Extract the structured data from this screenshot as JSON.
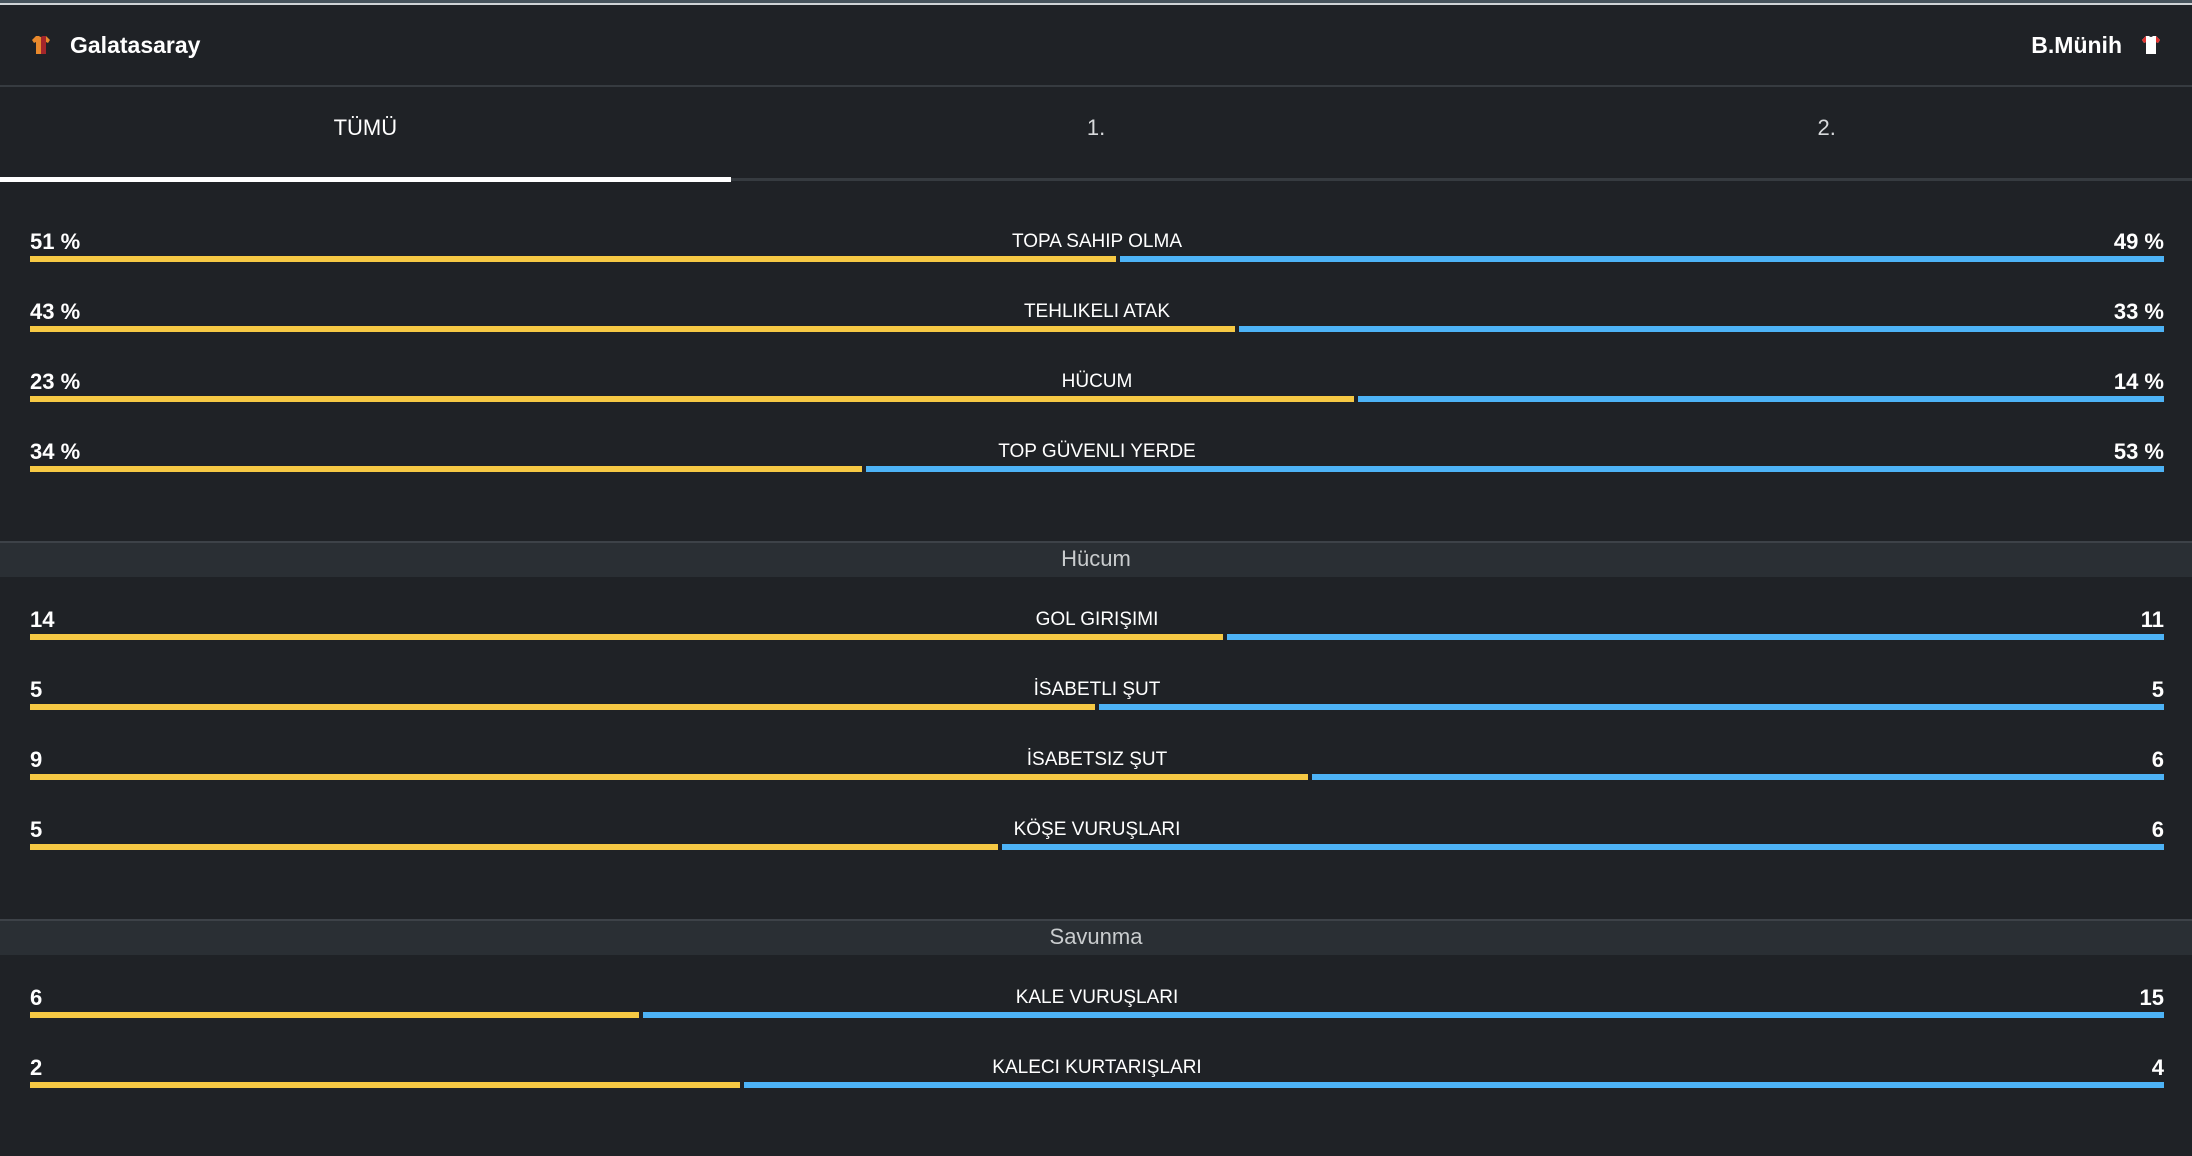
{
  "teams": {
    "home": {
      "name": "Galatasaray",
      "icon": "shirt-icon",
      "shirt_colors": [
        "#e8892c",
        "#a3262b"
      ]
    },
    "away": {
      "name": "B.Münih",
      "icon": "shirt-icon",
      "shirt_colors": [
        "#ffffff",
        "#e0312e"
      ]
    }
  },
  "colors": {
    "home_bar": "#f6c944",
    "away_bar": "#4db3f6",
    "background": "#1f2226"
  },
  "tabs": [
    {
      "label": "TÜMÜ",
      "active": true
    },
    {
      "label": "1.",
      "active": false
    },
    {
      "label": "2.",
      "active": false
    }
  ],
  "general": [
    {
      "label": "TOPA SAHIP OLMA",
      "home": "51 %",
      "away": "49 %",
      "home_value": 51,
      "away_value": 49
    },
    {
      "label": "TEHLIKELI ATAK",
      "home": "43 %",
      "away": "33 %",
      "home_value": 43,
      "away_value": 33
    },
    {
      "label": "HÜCUM",
      "home": "23 %",
      "away": "14 %",
      "home_value": 23,
      "away_value": 14
    },
    {
      "label": "TOP GÜVENLI YERDE",
      "home": "34 %",
      "away": "53 %",
      "home_value": 34,
      "away_value": 53
    }
  ],
  "sections": [
    {
      "title": "Hücum",
      "rows": [
        {
          "label": "GOL GIRIŞIMI",
          "home": "14",
          "away": "11",
          "home_value": 14,
          "away_value": 11
        },
        {
          "label": "İSABETLI ŞUT",
          "home": "5",
          "away": "5",
          "home_value": 5,
          "away_value": 5
        },
        {
          "label": "İSABETSIZ ŞUT",
          "home": "9",
          "away": "6",
          "home_value": 9,
          "away_value": 6
        },
        {
          "label": "KÖŞE VURUŞLARI",
          "home": "5",
          "away": "6",
          "home_value": 5,
          "away_value": 6
        }
      ]
    },
    {
      "title": "Savunma",
      "rows": [
        {
          "label": "KALE VURUŞLARI",
          "home": "6",
          "away": "15",
          "home_value": 6,
          "away_value": 15
        },
        {
          "label": "KALECI KURTARIŞLARI",
          "home": "2",
          "away": "4",
          "home_value": 2,
          "away_value": 4
        }
      ]
    }
  ]
}
